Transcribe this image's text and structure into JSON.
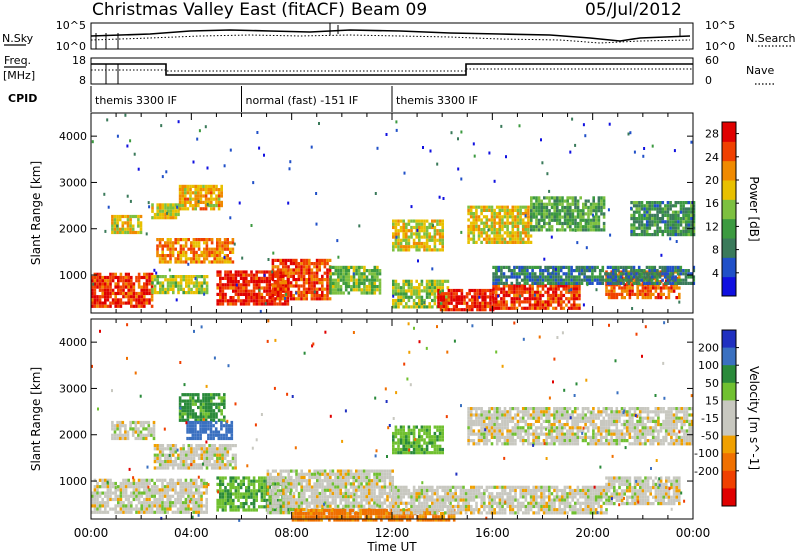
{
  "header": {
    "title": "Christmas Valley East (fitACF)",
    "beam": "Beam 09",
    "date": "05/Jul/2012"
  },
  "strip": {
    "nsky_label": "N.Sky",
    "nsky_top_tick": "10^5",
    "nsky_bottom_tick": "10^0",
    "nsearch_label": "N.Search",
    "nsearch_top_tick": "10^5",
    "nsearch_bottom_tick": "10^0",
    "freq_label_1": "Freq.",
    "freq_label_2": "[MHz]",
    "freq_top_tick": "18",
    "freq_bottom_tick": "8",
    "nave_label": "Nave",
    "nave_top_tick": "60",
    "nave_bottom_tick": "0",
    "cpid_label": "CPID",
    "cpid_segments": [
      {
        "label": "themis 3300 IF",
        "start_hour": 0,
        "end_hour": 6
      },
      {
        "label": "normal (fast) -151 IF",
        "start_hour": 6,
        "end_hour": 12
      },
      {
        "label": "themis 3300 IF",
        "start_hour": 12,
        "end_hour": 24
      }
    ]
  },
  "colors": {
    "power_scale": [
      "#1010e0",
      "#2050c8",
      "#3a7a5a",
      "#3c9a40",
      "#7dc040",
      "#e8c000",
      "#f08a00",
      "#f04000",
      "#e00000"
    ],
    "velocity_scale": [
      "#2030c0",
      "#3a70c0",
      "#2a8a3a",
      "#70c030",
      "#c8c8c0",
      "#c8c8c0",
      "#f0a000",
      "#f07000",
      "#f04000",
      "#e00000"
    ],
    "ground_scatter": "#c8c8c0"
  },
  "chart_data": [
    {
      "type": "heatmap",
      "name": "power",
      "ylabel": "Slant Range [km]",
      "xlabel": "Time UT",
      "x_ticks": [
        "00:00",
        "04:00",
        "08:00",
        "12:00",
        "16:00",
        "20:00",
        "00:00"
      ],
      "x_range_hours": [
        0,
        24
      ],
      "y_ticks": [
        1000,
        2000,
        3000,
        4000
      ],
      "y_range_km": [
        180,
        4500
      ],
      "colorbar_label": "Power [dB]",
      "colorbar_ticks": [
        4,
        8,
        12,
        16,
        20,
        24,
        28
      ],
      "colorbar_range": [
        0,
        30
      ],
      "regions": [
        {
          "t0": 0.0,
          "t1": 2.4,
          "r0": 300,
          "r1": 1050,
          "level": 26
        },
        {
          "t0": 2.4,
          "t1": 4.6,
          "r0": 600,
          "r1": 1000,
          "level": 16
        },
        {
          "t0": 0.8,
          "t1": 2.0,
          "r0": 1950,
          "r1": 2300,
          "level": 18
        },
        {
          "t0": 2.4,
          "t1": 3.5,
          "r0": 2250,
          "r1": 2550,
          "level": 18
        },
        {
          "t0": 3.5,
          "t1": 5.2,
          "r0": 2450,
          "r1": 2950,
          "level": 20
        },
        {
          "t0": 2.6,
          "t1": 5.7,
          "r0": 1250,
          "r1": 1800,
          "level": 22
        },
        {
          "t0": 5.0,
          "t1": 7.8,
          "r0": 350,
          "r1": 1100,
          "level": 27
        },
        {
          "t0": 7.2,
          "t1": 9.5,
          "r0": 500,
          "r1": 1350,
          "level": 25
        },
        {
          "t0": 9.5,
          "t1": 11.5,
          "r0": 600,
          "r1": 1200,
          "level": 14
        },
        {
          "t0": 12.0,
          "t1": 14.0,
          "r0": 1550,
          "r1": 2200,
          "level": 18
        },
        {
          "t0": 12.0,
          "t1": 14.2,
          "r0": 300,
          "r1": 900,
          "level": 16
        },
        {
          "t0": 13.8,
          "t1": 16.0,
          "r0": 250,
          "r1": 700,
          "level": 27
        },
        {
          "t0": 15.0,
          "t1": 17.5,
          "r0": 1700,
          "r1": 2500,
          "level": 18
        },
        {
          "t0": 17.5,
          "t1": 20.5,
          "r0": 2000,
          "r1": 2700,
          "level": 12
        },
        {
          "t0": 16.0,
          "t1": 19.5,
          "r0": 300,
          "r1": 800,
          "level": 26
        },
        {
          "t0": 20.5,
          "t1": 23.5,
          "r0": 500,
          "r1": 1100,
          "level": 24
        },
        {
          "t0": 21.5,
          "t1": 24.0,
          "r0": 1900,
          "r1": 2600,
          "level": 10
        },
        {
          "t0": 16.0,
          "t1": 24.0,
          "r0": 800,
          "r1": 1200,
          "level": 8
        }
      ]
    },
    {
      "type": "heatmap",
      "name": "velocity",
      "ylabel": "Slant Range [km]",
      "xlabel": "Time UT",
      "x_ticks": [
        "00:00",
        "04:00",
        "08:00",
        "12:00",
        "16:00",
        "20:00",
        "00:00"
      ],
      "x_range_hours": [
        0,
        24
      ],
      "y_ticks": [
        1000,
        2000,
        3000,
        4000
      ],
      "y_range_km": [
        180,
        4500
      ],
      "colorbar_label": "Velocity [m s^-1]",
      "colorbar_ticks": [
        200,
        100,
        50,
        15,
        -15,
        -50,
        -100,
        -200
      ],
      "colorbar_range": [
        -250,
        250
      ],
      "regions": [
        {
          "t0": 0.0,
          "t1": 4.6,
          "r0": 300,
          "r1": 1050,
          "level": 0
        },
        {
          "t0": 0.8,
          "t1": 2.5,
          "r0": 1950,
          "r1": 2300,
          "level": 0
        },
        {
          "t0": 2.5,
          "t1": 5.8,
          "r0": 1250,
          "r1": 1800,
          "level": 0
        },
        {
          "t0": 3.5,
          "t1": 5.3,
          "r0": 2300,
          "r1": 2900,
          "level": 60
        },
        {
          "t0": 3.8,
          "t1": 5.6,
          "r0": 1900,
          "r1": 2300,
          "level": 120
        },
        {
          "t0": 5.0,
          "t1": 8.0,
          "r0": 400,
          "r1": 1100,
          "level": 45
        },
        {
          "t0": 7.0,
          "t1": 12.0,
          "r0": 300,
          "r1": 1250,
          "level": 0
        },
        {
          "t0": 8.0,
          "t1": 14.5,
          "r0": 150,
          "r1": 400,
          "level": -60
        },
        {
          "t0": 12.0,
          "t1": 14.0,
          "r0": 1600,
          "r1": 2200,
          "level": 40
        },
        {
          "t0": 12.0,
          "t1": 20.5,
          "r0": 300,
          "r1": 900,
          "level": 0
        },
        {
          "t0": 15.0,
          "t1": 24.0,
          "r0": 1800,
          "r1": 2600,
          "level": 0
        },
        {
          "t0": 20.5,
          "t1": 23.5,
          "r0": 500,
          "r1": 1100,
          "level": 0
        }
      ]
    }
  ]
}
